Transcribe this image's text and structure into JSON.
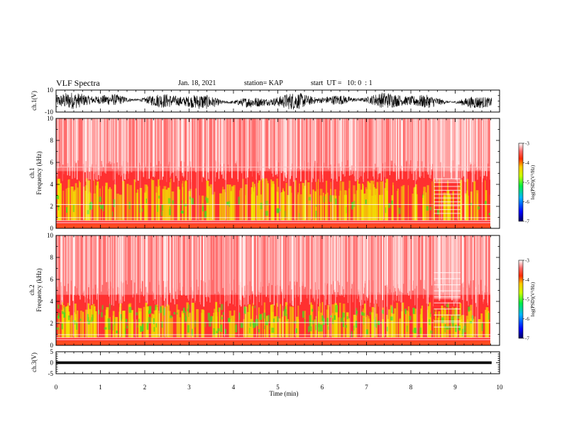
{
  "header": {
    "title": "VLF Spectra",
    "date": "Jan. 18, 2021",
    "station": "station= KAP",
    "start_ut": "start  UT =   10: 0  : 1"
  },
  "colors": {
    "spectrogram_background": "#ff2a2a",
    "low_band": "#f2e600",
    "green_patches": "#44dd22",
    "waveform": "#000000"
  },
  "chart_data": [
    {
      "type": "line",
      "ylabel": "ch.1(V)",
      "ylim": [
        -10,
        10
      ],
      "yticks": [
        "10",
        "-10"
      ],
      "xlim": [
        0,
        10
      ],
      "description_only": false,
      "amplitude_range": [
        -8,
        8
      ]
    },
    {
      "type": "heatmap",
      "ylabel_top": "ch.1",
      "ylabel": "Frequency  (kHz)",
      "ylim": [
        0,
        10
      ],
      "yticks": [
        "0",
        "2",
        "4",
        "6",
        "8",
        "10"
      ],
      "xlim": [
        0,
        10
      ],
      "colorbar": {
        "label": "log(PSD)(V²/Hz)",
        "ticks": [
          "-3",
          "-4",
          "-5",
          "-6",
          "-7"
        ],
        "range": [
          -7,
          -3
        ]
      }
    },
    {
      "type": "heatmap",
      "ylabel_top": "ch.2",
      "ylabel": "Frequency  (kHz)",
      "ylim": [
        0,
        10
      ],
      "yticks": [
        "0",
        "2",
        "4",
        "6",
        "8",
        "10"
      ],
      "xlim": [
        0,
        10
      ],
      "colorbar": {
        "label": "log(PSD)(V²/Hz)",
        "ticks": [
          "-3",
          "-4",
          "-5",
          "-6",
          "-7"
        ],
        "range": [
          -7,
          -3
        ]
      }
    },
    {
      "type": "line",
      "ylabel": "ch.3(V)",
      "ylim": [
        -5,
        5
      ],
      "yticks": [
        "5",
        "0",
        "-5"
      ],
      "xlim": [
        0,
        10
      ],
      "amplitude_range": [
        -0.6,
        0.6
      ]
    }
  ],
  "xaxis": {
    "label": "Time  (min)",
    "ticks": [
      "0",
      "1",
      "2",
      "3",
      "4",
      "5",
      "6",
      "7",
      "8",
      "9",
      "10"
    ],
    "data_end": 9.82
  }
}
